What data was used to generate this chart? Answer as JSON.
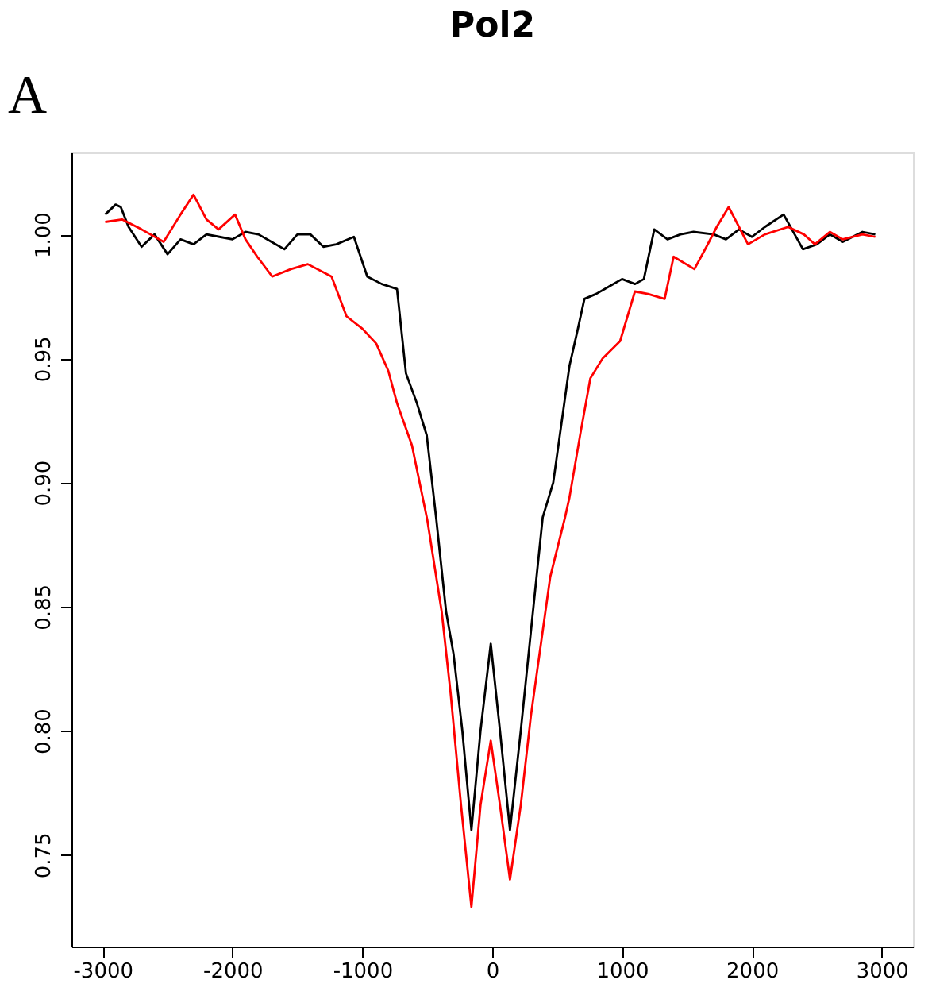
{
  "chart_data": {
    "type": "line",
    "title": "Pol2",
    "annotations": [
      "A"
    ],
    "xlim": [
      -3240,
      3240
    ],
    "ylim": [
      0.713,
      1.033
    ],
    "xticks": [
      {
        "value": -3000,
        "label": "-3000"
      },
      {
        "value": -2000,
        "label": "-2000"
      },
      {
        "value": -1000,
        "label": "-1000"
      },
      0,
      1000,
      2000,
      3000
    ],
    "yticks": [
      0.75,
      {
        "value": 0.8,
        "label": "0.80"
      },
      0.85,
      {
        "value": 0.9,
        "label": "0.90"
      },
      0.95,
      {
        "value": 1.0,
        "label": "1.00"
      }
    ],
    "grid": false,
    "legend": false,
    "line_style": "solid",
    "series": [
      {
        "color": "#000000",
        "x": [
          -2980,
          -2900,
          -2860,
          -2800,
          -2700,
          -2600,
          -2500,
          -2400,
          -2300,
          -2200,
          -2100,
          -2000,
          -1900,
          -1800,
          -1700,
          -1600,
          -1500,
          -1400,
          -1300,
          -1200,
          -1065,
          -962,
          -850,
          -733,
          -664,
          -580,
          -504,
          -430,
          -355,
          -298,
          -230,
          -160,
          -90,
          -11,
          60,
          137,
          220,
          298,
          389,
          470,
          595,
          660,
          710,
          800,
          900,
          1000,
          1100,
          1168,
          1248,
          1350,
          1450,
          1550,
          1706,
          1800,
          1900,
          2000,
          2100,
          2244,
          2393,
          2500,
          2600,
          2700,
          2851,
          2950
        ],
        "values": [
          1.008,
          1.012,
          1.011,
          1.003,
          0.995,
          1.0,
          0.992,
          0.998,
          0.996,
          1.0,
          0.999,
          0.998,
          1.001,
          1.0,
          0.997,
          0.994,
          1.0,
          1.0,
          0.995,
          0.996,
          0.999,
          0.983,
          0.98,
          0.978,
          0.944,
          0.932,
          0.919,
          0.885,
          0.848,
          0.831,
          0.8,
          0.76,
          0.8,
          0.835,
          0.8,
          0.76,
          0.8,
          0.84,
          0.886,
          0.9,
          0.947,
          0.962,
          0.974,
          0.976,
          0.979,
          0.982,
          0.98,
          0.982,
          1.002,
          0.998,
          1.0,
          1.001,
          1.0,
          0.998,
          1.002,
          0.999,
          1.003,
          1.008,
          0.994,
          0.996,
          1.0,
          0.997,
          1.001,
          1.0
        ]
      },
      {
        "color": "#ff0000",
        "x": [
          -2980,
          -2851,
          -2700,
          -2530,
          -2400,
          -2300,
          -2200,
          -2107,
          -1980,
          -1900,
          -1809,
          -1694,
          -1550,
          -1420,
          -1237,
          -1122,
          -1000,
          -893,
          -800,
          -733,
          -618,
          -500,
          -389,
          -320,
          -240,
          -160,
          -90,
          -11,
          60,
          137,
          220,
          298,
          447,
          561,
          595,
          680,
          756,
          850,
          985,
          1099,
          1200,
          1328,
          1397,
          1557,
          1650,
          1729,
          1821,
          1970,
          2100,
          2279,
          2400,
          2485,
          2600,
          2700,
          2851,
          2950
        ],
        "values": [
          1.005,
          1.006,
          1.002,
          0.997,
          1.008,
          1.016,
          1.006,
          1.002,
          1.008,
          0.998,
          0.991,
          0.983,
          0.986,
          0.988,
          0.983,
          0.967,
          0.962,
          0.956,
          0.945,
          0.932,
          0.915,
          0.885,
          0.848,
          0.815,
          0.77,
          0.729,
          0.77,
          0.796,
          0.77,
          0.74,
          0.77,
          0.806,
          0.862,
          0.886,
          0.894,
          0.92,
          0.942,
          0.95,
          0.957,
          0.977,
          0.976,
          0.974,
          0.991,
          0.986,
          0.995,
          1.003,
          1.011,
          0.996,
          1.0,
          1.003,
          1.0,
          0.996,
          1.001,
          0.998,
          1.0,
          0.999
        ]
      }
    ]
  }
}
